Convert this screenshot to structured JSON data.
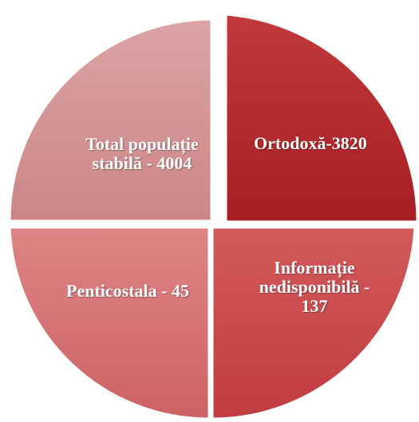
{
  "nodes": [
    {
      "label": "Ortodoxă-3820"
    },
    {
      "label": "Informație nedisponibilă - 137"
    },
    {
      "label": "Penticostala - 45"
    },
    {
      "label": "Total populație stabilă - 4004"
    }
  ]
}
